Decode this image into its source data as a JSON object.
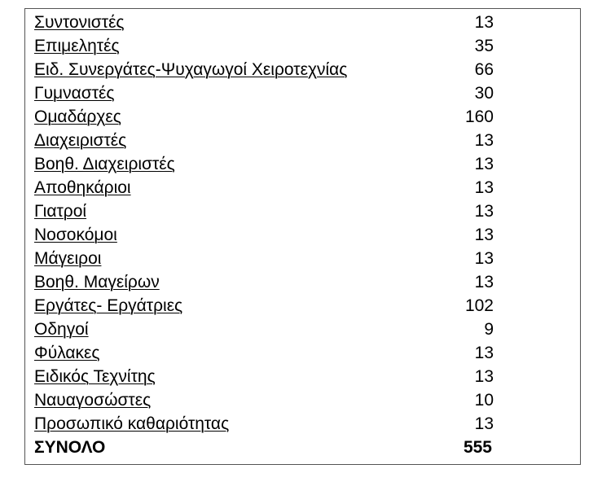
{
  "table": {
    "rows": [
      [
        "Συντονιστές",
        13
      ],
      [
        "Επιμελητές",
        35
      ],
      [
        "Ειδ. Συνεργάτες-Ψυχαγωγοί Χειροτεχνίας",
        66
      ],
      [
        "Γυμναστές",
        30
      ],
      [
        "Ομαδάρχες",
        160
      ],
      [
        "Διαχειριστές",
        13
      ],
      [
        "Βοηθ. Διαχειριστές",
        13
      ],
      [
        "Αποθηκάριοι",
        13
      ],
      [
        "Γιατροί",
        13
      ],
      [
        "Νοσοκόμοι",
        13
      ],
      [
        "Μάγειροι",
        13
      ],
      [
        "Βοηθ. Μαγείρων",
        13
      ],
      [
        "Εργάτες- Εργάτριες",
        102
      ],
      [
        "Οδηγοί",
        9
      ],
      [
        "Φύλακες",
        13
      ],
      [
        "Ειδικός Τεχνίτης",
        13
      ],
      [
        "Ναυαγοσώστες",
        10
      ],
      [
        "Προσωπικό καθαριότητας",
        13
      ]
    ],
    "total": [
      "ΣΥΝΟΛΟ",
      555
    ]
  }
}
